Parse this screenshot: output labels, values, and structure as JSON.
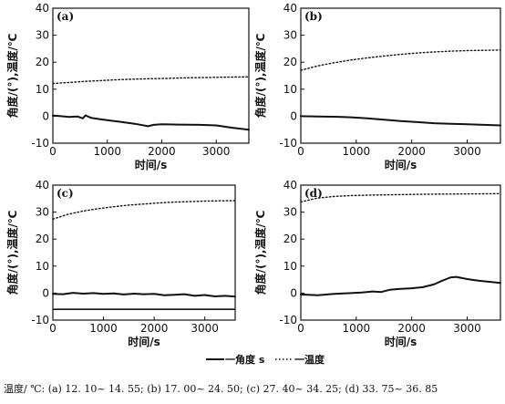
{
  "legend": {
    "angle_label": "一角度 s",
    "temperature_label": "一温度"
  },
  "caption": "温度/ ℃: (a) 12. 10~ 14. 55; (b) 17. 00~ 24. 50; (c) 27. 40~ 34. 25; (d) 33. 75~ 36. 85",
  "chart_data": [
    {
      "type": "line",
      "panel": "(a)",
      "xlabel": "时间/s",
      "ylabel": "角度/(°),温度/℃",
      "xlim": [
        0,
        3600
      ],
      "ylim": [
        -10,
        40
      ],
      "xticks": [
        0,
        1000,
        2000,
        3000
      ],
      "yticks": [
        -10,
        0,
        10,
        20,
        30,
        40
      ],
      "grid": false,
      "series": [
        {
          "name": "角度",
          "style": "solid",
          "x": [
            0,
            150,
            300,
            450,
            550,
            600,
            700,
            900,
            1200,
            1500,
            1750,
            1850,
            2000,
            2300,
            2700,
            3000,
            3300,
            3600
          ],
          "y": [
            0.2,
            0.0,
            -0.3,
            -0.1,
            -0.8,
            0.3,
            -0.6,
            -1.2,
            -2.0,
            -2.8,
            -3.7,
            -3.2,
            -3.0,
            -3.1,
            -3.2,
            -3.4,
            -4.3,
            -5.0
          ]
        },
        {
          "name": "温度",
          "style": "dotted",
          "x": [
            0,
            300,
            600,
            900,
            1200,
            1500,
            1800,
            2100,
            2400,
            2700,
            3000,
            3300,
            3600
          ],
          "y": [
            12.1,
            12.5,
            12.9,
            13.2,
            13.5,
            13.7,
            13.9,
            14.0,
            14.2,
            14.3,
            14.4,
            14.5,
            14.55
          ]
        }
      ]
    },
    {
      "type": "line",
      "panel": "(b)",
      "xlabel": "时间/s",
      "ylabel": "角度/(°),温度/℃",
      "xlim": [
        0,
        3600
      ],
      "ylim": [
        -10,
        40
      ],
      "xticks": [
        0,
        1000,
        2000,
        3000
      ],
      "yticks": [
        -10,
        0,
        10,
        20,
        30,
        40
      ],
      "grid": false,
      "series": [
        {
          "name": "角度",
          "style": "solid",
          "x": [
            0,
            300,
            600,
            900,
            1200,
            1500,
            1800,
            2100,
            2400,
            2700,
            3000,
            3300,
            3600
          ],
          "y": [
            0.0,
            -0.1,
            -0.2,
            -0.4,
            -0.8,
            -1.3,
            -1.8,
            -2.2,
            -2.6,
            -2.8,
            -3.0,
            -3.2,
            -3.4
          ]
        },
        {
          "name": "温度",
          "style": "dotted",
          "x": [
            0,
            300,
            600,
            900,
            1200,
            1500,
            1800,
            2100,
            2400,
            2700,
            3000,
            3300,
            3600
          ],
          "y": [
            17.0,
            18.6,
            19.8,
            20.8,
            21.6,
            22.3,
            22.9,
            23.4,
            23.8,
            24.1,
            24.3,
            24.4,
            24.5
          ]
        }
      ]
    },
    {
      "type": "line",
      "panel": "(c)",
      "xlabel": "时间/s",
      "ylabel": "角度/(°),温度/℃",
      "xlim": [
        0,
        3600
      ],
      "ylim": [
        -10,
        40
      ],
      "xticks": [
        0,
        1000,
        2000,
        3000
      ],
      "yticks": [
        -10,
        0,
        10,
        20,
        30,
        40
      ],
      "grid": false,
      "reference_line_y": -6,
      "series": [
        {
          "name": "角度",
          "style": "solid",
          "x": [
            0,
            200,
            400,
            600,
            800,
            1000,
            1200,
            1400,
            1600,
            1800,
            2000,
            2200,
            2400,
            2600,
            2800,
            3000,
            3200,
            3400,
            3600
          ],
          "y": [
            -0.3,
            -0.4,
            0.1,
            -0.2,
            0.0,
            -0.3,
            -0.1,
            -0.5,
            -0.2,
            -0.4,
            -0.3,
            -0.8,
            -0.6,
            -0.4,
            -1.0,
            -0.7,
            -1.2,
            -1.0,
            -1.3
          ]
        },
        {
          "name": "温度",
          "style": "dotted",
          "x": [
            0,
            300,
            600,
            900,
            1200,
            1500,
            1800,
            2100,
            2400,
            2700,
            3000,
            3300,
            3600
          ],
          "y": [
            27.4,
            29.2,
            30.4,
            31.3,
            32.0,
            32.6,
            33.0,
            33.4,
            33.7,
            33.9,
            34.1,
            34.2,
            34.25
          ]
        }
      ]
    },
    {
      "type": "line",
      "panel": "(d)",
      "xlabel": "时间/s",
      "ylabel": "角度/(°),温度/℃",
      "xlim": [
        0,
        3600
      ],
      "ylim": [
        -10,
        40
      ],
      "xticks": [
        0,
        1000,
        2000,
        3000
      ],
      "yticks": [
        -10,
        0,
        10,
        20,
        30,
        40
      ],
      "grid": false,
      "series": [
        {
          "name": "角度",
          "style": "solid",
          "x": [
            0,
            300,
            600,
            900,
            1100,
            1300,
            1450,
            1600,
            1800,
            2000,
            2200,
            2400,
            2550,
            2700,
            2800,
            3000,
            3200,
            3400,
            3600
          ],
          "y": [
            -0.5,
            -0.8,
            -0.3,
            0.0,
            0.2,
            0.6,
            0.4,
            1.2,
            1.6,
            1.8,
            2.2,
            3.2,
            4.6,
            5.8,
            6.0,
            5.2,
            4.6,
            4.2,
            3.8
          ]
        },
        {
          "name": "温度",
          "style": "dotted",
          "x": [
            0,
            300,
            600,
            900,
            1200,
            1500,
            1800,
            2100,
            2400,
            2700,
            3000,
            3300,
            3600
          ],
          "y": [
            33.75,
            35.2,
            35.8,
            36.1,
            36.3,
            36.4,
            36.5,
            36.6,
            36.65,
            36.7,
            36.75,
            36.8,
            36.85
          ]
        }
      ]
    }
  ]
}
